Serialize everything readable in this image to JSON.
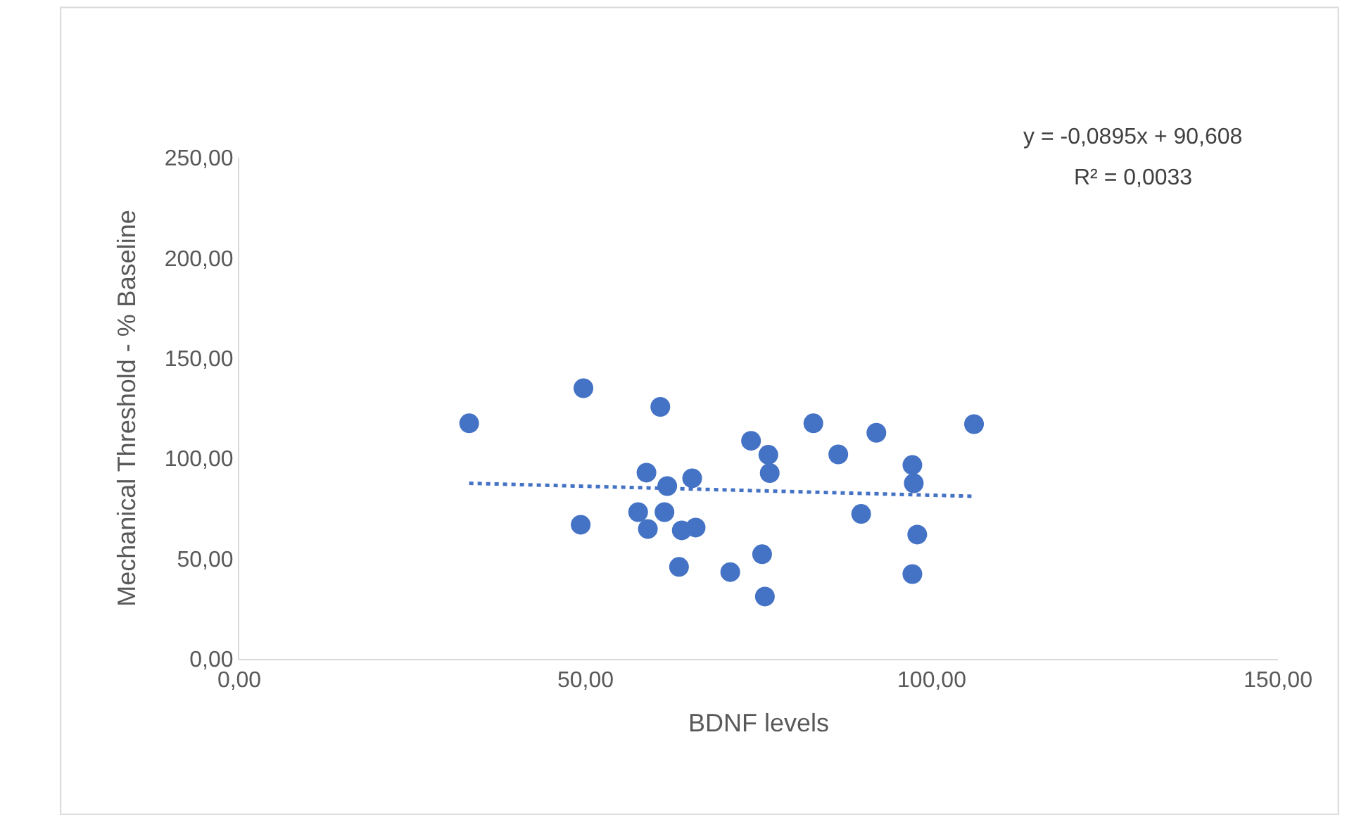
{
  "chart_data": {
    "type": "scatter",
    "xlabel": "BDNF levels",
    "ylabel": "Mechanical Threshold - % Baseline",
    "series": [
      {
        "color": "#4472c4",
        "marker": "circle",
        "x": [
          33.2,
          49.7,
          60.8,
          58.8,
          61.8,
          65.4,
          57.6,
          61.4,
          59.0,
          63.9,
          65.9,
          49.3,
          63.5,
          70.9,
          75.5,
          75.9,
          73.9,
          76.4,
          76.6,
          82.9,
          86.5,
          92.0,
          89.8,
          97.2,
          97.4,
          97.9,
          97.2,
          106.1
        ],
        "values": [
          117.5,
          135.0,
          125.7,
          92.9,
          86.2,
          90.1,
          73.2,
          73.2,
          64.8,
          64.1,
          65.5,
          66.9,
          45.9,
          43.3,
          52.2,
          31.1,
          108.8,
          101.8,
          92.7,
          117.5,
          102.0,
          112.8,
          72.3,
          96.7,
          87.6,
          62.0,
          42.3,
          117.1
        ]
      },
      {
        "type": "line",
        "color": "#4472c4",
        "line_style": "dotted",
        "x": [
          33.2,
          106.1
        ],
        "values": [
          87.6,
          81.1
        ]
      }
    ],
    "xlim": [
      0,
      150
    ],
    "xticks": [
      {
        "value": 0,
        "label": "0,00"
      },
      {
        "value": 50,
        "label": "50,00"
      },
      {
        "value": 100,
        "label": "100,00"
      },
      {
        "value": 150,
        "label": "150,00"
      }
    ],
    "ylim": [
      0,
      250
    ],
    "yticks": [
      {
        "value": 0,
        "label": "0,00"
      },
      {
        "value": 50,
        "label": "50,00"
      },
      {
        "value": 100,
        "label": "100,00"
      },
      {
        "value": 150,
        "label": "150,00"
      },
      {
        "value": 200,
        "label": "200,00"
      },
      {
        "value": 250,
        "label": "250,00"
      }
    ],
    "annotations": [
      "y = -0,0895x + 90,608",
      "R² = 0,0033"
    ]
  }
}
